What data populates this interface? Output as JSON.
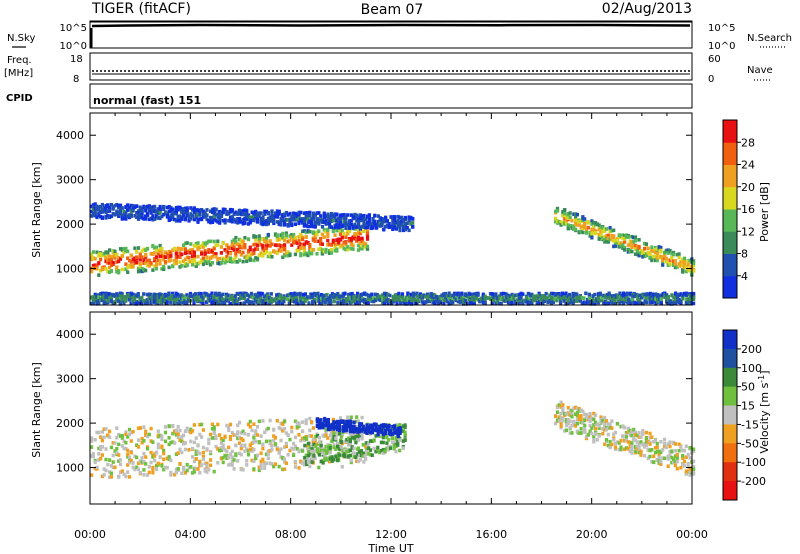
{
  "header": {
    "station": "TIGER (fitACF)",
    "beam": "Beam 07",
    "date": "02/Aug/2013"
  },
  "summary_panels": {
    "nsky": {
      "label": "N.Sky",
      "ticks": [
        "10^5",
        "10^0"
      ]
    },
    "nsearch": {
      "label": "N.Search",
      "ticks": [
        "10^5",
        "10^0"
      ]
    },
    "freq": {
      "label_line1": "Freq.",
      "label_line2": "[MHz]",
      "ticks": [
        "18",
        "8"
      ]
    },
    "nave": {
      "label": "Nave",
      "ticks": [
        "60",
        "0"
      ]
    },
    "cpid": {
      "label": "CPID",
      "text": "normal (fast) 151"
    }
  },
  "x_axis": {
    "label": "Time UT",
    "ticks": [
      "00:00",
      "04:00",
      "08:00",
      "12:00",
      "16:00",
      "20:00",
      "00:00"
    ]
  },
  "y_axis": {
    "label": "Slant Range [km]",
    "ticks": [
      "1000",
      "2000",
      "3000",
      "4000"
    ]
  },
  "power_colorbar": {
    "title": "Power [dB]",
    "ticks": [
      "4",
      "8",
      "12",
      "16",
      "20",
      "24",
      "28"
    ],
    "colors": [
      "#1030e0",
      "#2050b0",
      "#3a8a5a",
      "#58b858",
      "#d8d820",
      "#f0a020",
      "#f06010",
      "#e81010"
    ]
  },
  "velocity_colorbar": {
    "title_main": "Velocity [m s",
    "title_sup": "-1",
    "title_end": "]",
    "ticks": [
      "200",
      "100",
      "50",
      "15",
      "-15",
      "-50",
      "-100",
      "-200"
    ],
    "colors": [
      "#1030c8",
      "#2050a0",
      "#3a8a3a",
      "#70c040",
      "#c0c0c0",
      "#f0a020",
      "#f07010",
      "#e03010",
      "#e81010"
    ]
  },
  "chart_data": [
    {
      "type": "heatmap",
      "title": "Power [dB]",
      "xlabel": "Time UT",
      "ylabel": "Slant Range [km]",
      "xlim": [
        0,
        24
      ],
      "ylim": [
        180,
        4500
      ],
      "features": [
        {
          "name": "main echo band",
          "t0": 0.0,
          "t1": 11.0,
          "range_center_start": 1100,
          "range_center_end": 1700,
          "width_km": 350,
          "power_db": 28
        },
        {
          "name": "upper band",
          "t0": 0.0,
          "t1": 12.8,
          "range_center_start": 2300,
          "range_center_end": 2000,
          "width_km": 200,
          "power_db": 6
        },
        {
          "name": "evening echo",
          "t0": 18.5,
          "t1": 24.0,
          "range_center_start": 2200,
          "range_center_end": 1000,
          "width_km": 250,
          "power_db": 22
        },
        {
          "name": "near-range clutter",
          "t0": 0.0,
          "t1": 24.0,
          "range_center_start": 320,
          "range_center_end": 320,
          "width_km": 150,
          "power_db": 10
        }
      ]
    },
    {
      "type": "heatmap",
      "title": "Velocity [m s-1]",
      "xlabel": "Time UT",
      "ylabel": "Slant Range [km]",
      "xlim": [
        0,
        24
      ],
      "ylim": [
        180,
        4500
      ],
      "features": [
        {
          "name": "ground scatter band",
          "t0": 0.0,
          "t1": 11.0,
          "range_center_start": 1300,
          "range_center_end": 1600,
          "width_km": 700,
          "velocity_ms": 0
        },
        {
          "name": "negative flow patch",
          "t0": 8.5,
          "t1": 12.5,
          "range_center_start": 1350,
          "range_center_end": 1700,
          "width_km": 400,
          "velocity_ms": 30
        },
        {
          "name": "receding flow",
          "t0": 9.0,
          "t1": 12.3,
          "range_center_start": 2000,
          "range_center_end": 1800,
          "width_km": 150,
          "velocity_ms": 220
        },
        {
          "name": "evening echo",
          "t0": 18.5,
          "t1": 24.0,
          "range_center_start": 2200,
          "range_center_end": 1100,
          "width_km": 400,
          "velocity_ms": 0
        }
      ]
    }
  ]
}
